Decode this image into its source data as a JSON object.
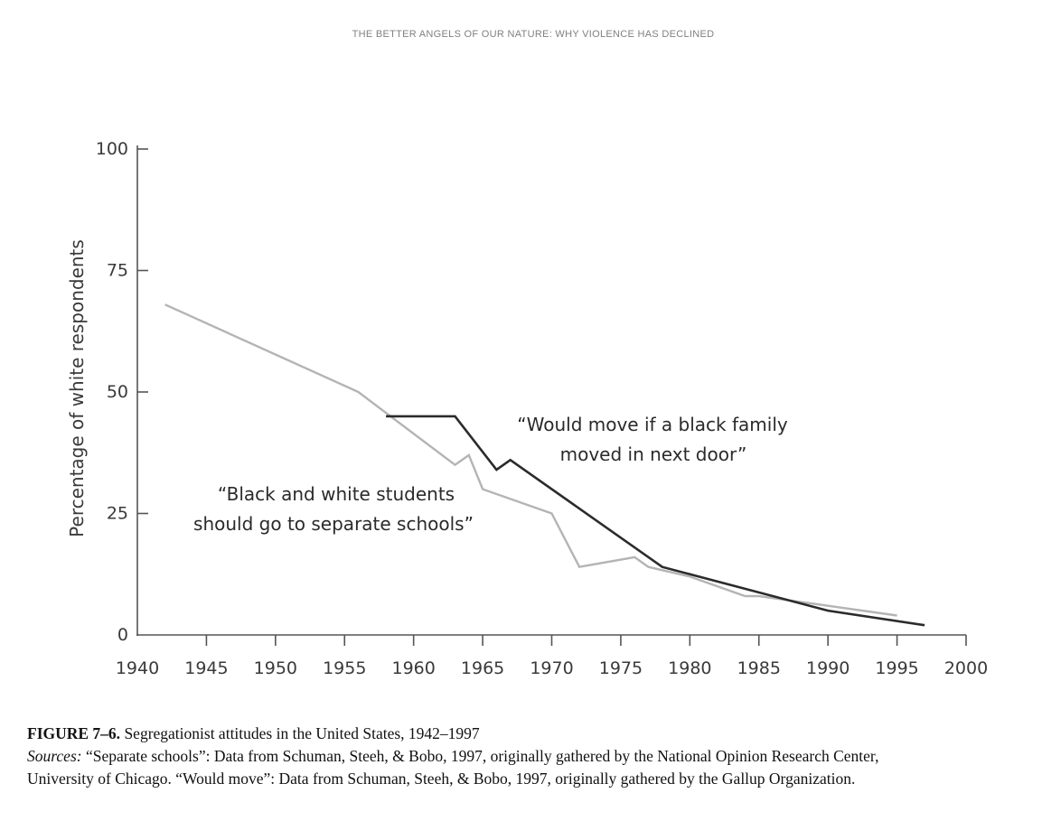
{
  "running_head": "THE BETTER ANGELS OF OUR NATURE: WHY VIOLENCE HAS DECLINED",
  "caption": {
    "figure_number": "FIGURE 7–6.",
    "title": "Segregationist attitudes in the United States, 1942–1997",
    "sources_label": "Sources:",
    "sources_text": "“Separate schools”: Data from Schuman, Steeh, & Bobo, 1997, originally gathered by the National Opinion Research Center,",
    "sources_text_2": "University of Chicago. “Would move”: Data from Schuman, Steeh, & Bobo, 1997, originally gathered by the Gallup Organization."
  },
  "chart_data": {
    "type": "line",
    "title": "",
    "xlabel": "",
    "ylabel": "Percentage of white respondents",
    "xlim": [
      1940,
      2000
    ],
    "ylim": [
      0,
      100
    ],
    "xticks": [
      1940,
      1945,
      1950,
      1955,
      1960,
      1965,
      1970,
      1975,
      1980,
      1985,
      1990,
      1995,
      2000
    ],
    "yticks": [
      0,
      25,
      50,
      75,
      100
    ],
    "grid": false,
    "legend": "none",
    "series": [
      {
        "annotation": [
          "“Black and white students",
          "should go to separate schools”"
        ],
        "color": "#b4b4b4",
        "points": [
          [
            1942,
            68
          ],
          [
            1956,
            50
          ],
          [
            1963,
            35
          ],
          [
            1964,
            37
          ],
          [
            1965,
            30
          ],
          [
            1970,
            25
          ],
          [
            1972,
            14
          ],
          [
            1976,
            16
          ],
          [
            1977,
            14
          ],
          [
            1980,
            12
          ],
          [
            1984,
            8
          ],
          [
            1985,
            8
          ],
          [
            1990,
            6
          ],
          [
            1995,
            4
          ]
        ]
      },
      {
        "annotation": [
          "“Would move if a black family",
          "moved in next door”"
        ],
        "color": "#2b2b2b",
        "points": [
          [
            1958,
            45
          ],
          [
            1963,
            45
          ],
          [
            1966,
            34
          ],
          [
            1967,
            36
          ],
          [
            1978,
            14
          ],
          [
            1990,
            5
          ],
          [
            1997,
            2
          ]
        ]
      }
    ]
  }
}
